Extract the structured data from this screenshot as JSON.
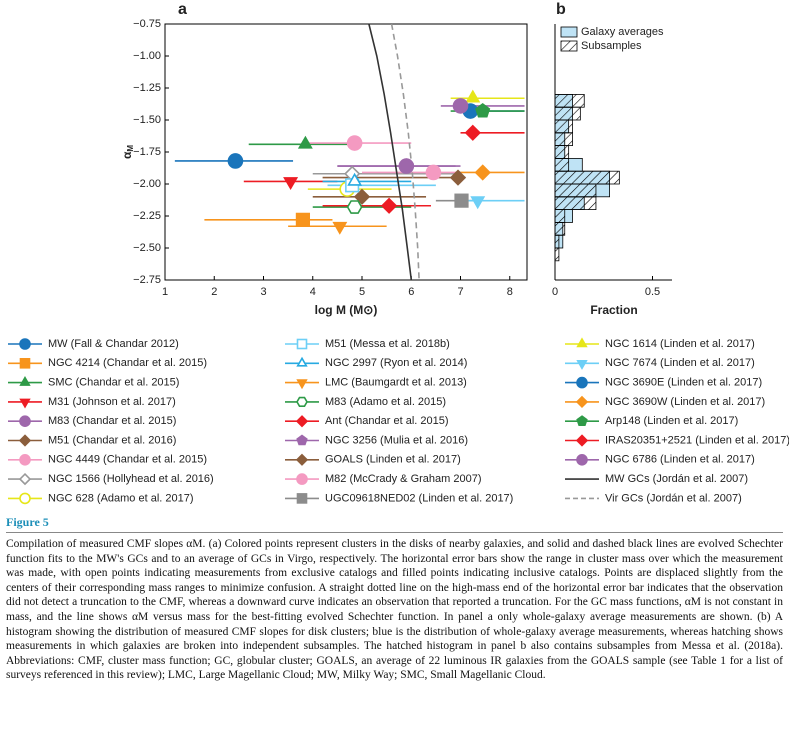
{
  "chart_data": [
    {
      "type": "scatter",
      "title": "a",
      "xlabel": "log M (M⊙)",
      "ylabel_symbol": "α",
      "ylabel_subscript": "M",
      "xlim": [
        1,
        8.35
      ],
      "ylim": [
        -2.75,
        -0.75
      ],
      "xticks": [
        1,
        2,
        3,
        4,
        5,
        6,
        7,
        8
      ],
      "yticks": [
        {
          "value": -0.75,
          "label": "−0.75"
        },
        {
          "value": -1.0,
          "label": "−1.00"
        },
        {
          "value": -1.25,
          "label": "−1.25"
        },
        {
          "value": -1.5,
          "label": "−1.50"
        },
        {
          "value": -1.75,
          "label": "−1.75"
        },
        {
          "value": -2.0,
          "label": "−2.00"
        },
        {
          "value": -2.25,
          "label": "−2.25"
        },
        {
          "value": -2.5,
          "label": "−2.50"
        },
        {
          "value": -2.75,
          "label": "−2.75"
        }
      ],
      "series": [
        {
          "name": "MW (Fall & Chandar 2012)",
          "color": "#1a75bb",
          "marker": "circle",
          "filled": true,
          "x": [
            2.43
          ],
          "values": [
            -1.82
          ],
          "xerr": [
            [
              1.2,
              3.6
            ]
          ]
        },
        {
          "name": "NGC 4214 (Chandar et al. 2015)",
          "color": "#f7941d",
          "marker": "square",
          "filled": true,
          "x": [
            3.8
          ],
          "values": [
            -2.28
          ],
          "xerr": [
            [
              1.8,
              4.4
            ]
          ]
        },
        {
          "name": "SMC (Chandar et al. 2015)",
          "color": "#2e9a47",
          "marker": "triangle-up",
          "filled": true,
          "x": [
            3.85
          ],
          "values": [
            -1.69
          ],
          "xerr": [
            [
              2.7,
              5.0
            ]
          ]
        },
        {
          "name": "M31 (Johnson et al. 2017)",
          "color": "#ed1c24",
          "marker": "triangle-down",
          "filled": true,
          "x": [
            3.55
          ],
          "values": [
            -1.98
          ],
          "xerr": [
            [
              2.6,
              4.5
            ]
          ]
        },
        {
          "name": "M83 (Chandar et al. 2015)",
          "color": "#9e67ab",
          "marker": "circle",
          "filled": true,
          "x": [
            5.9
          ],
          "values": [
            -1.86
          ],
          "xerr": [
            [
              4.5,
              6.9
            ]
          ]
        },
        {
          "name": "M51 (Chandar et al. 2016)",
          "color": "#8b5e3c",
          "marker": "diamond",
          "filled": true,
          "x": [
            5.0
          ],
          "values": [
            -2.1
          ],
          "xerr": [
            [
              4.0,
              6.3
            ]
          ]
        },
        {
          "name": "NGC 4449 (Chandar et al. 2015)",
          "color": "#f49ac1",
          "marker": "circle",
          "filled": true,
          "x": [
            4.85
          ],
          "values": [
            -1.68
          ],
          "xerr": [
            [
              3.8,
              6.0
            ]
          ]
        },
        {
          "name": "NGC 1566 (Hollyhead et al. 2016)",
          "color": "#999999",
          "marker": "diamond",
          "filled": false,
          "x": [
            4.8
          ],
          "values": [
            -1.92
          ],
          "xerr": [
            [
              4.0,
              7.0
            ]
          ]
        },
        {
          "name": "NGC 628 (Adamo et al. 2017)",
          "color": "#e6e619",
          "marker": "circle",
          "filled": false,
          "x": [
            4.7
          ],
          "values": [
            -2.04
          ],
          "xerr": [
            [
              3.9,
              5.6
            ]
          ]
        },
        {
          "name": "M51 (Messa et al. 2018b)",
          "color": "#6dcff6",
          "marker": "square",
          "filled": false,
          "x": [
            4.8
          ],
          "values": [
            -2.01
          ],
          "xerr": [
            [
              4.3,
              6.5
            ]
          ]
        },
        {
          "name": "NGC 2997 (Ryon et al. 2014)",
          "color": "#27aae1",
          "marker": "triangle-up",
          "filled": false,
          "x": [
            4.85
          ],
          "values": [
            -1.98
          ],
          "xerr": [
            [
              4.2,
              6.0
            ]
          ]
        },
        {
          "name": "LMC (Baumgardt et al. 2013)",
          "color": "#f7941d",
          "marker": "triangle-down",
          "filled": true,
          "x": [
            4.55
          ],
          "values": [
            -2.33
          ],
          "xerr": [
            [
              3.5,
              5.5
            ]
          ]
        },
        {
          "name": "M83 (Adamo et al. 2015)",
          "color": "#2e9a47",
          "marker": "hexagon",
          "filled": false,
          "x": [
            4.85
          ],
          "values": [
            -2.18
          ],
          "xerr": [
            [
              4.0,
              6.0
            ]
          ]
        },
        {
          "name": "Ant (Chandar et al. 2015)",
          "color": "#ed1c24",
          "marker": "diamond",
          "filled": true,
          "x": [
            5.55
          ],
          "values": [
            -2.17
          ],
          "xerr": [
            [
              4.2,
              6.4
            ]
          ]
        },
        {
          "name": "NGC 3256 (Mulia et al. 2016)",
          "color": "#9e67ab",
          "marker": "pentagon",
          "filled": true,
          "x": [
            5.9
          ],
          "values": [
            -1.86
          ],
          "xerr": [
            [
              4.5,
              7.0
            ]
          ]
        },
        {
          "name": "GOALS (Linden et al. 2017)",
          "color": "#8b5e3c",
          "marker": "diamond",
          "filled": true,
          "x": [
            6.95
          ],
          "values": [
            -1.95
          ],
          "xerr": [
            [
              4.2,
              7.1
            ]
          ]
        },
        {
          "name": "M82 (McCrady & Graham 2007)",
          "color": "#f49ac1",
          "marker": "circle",
          "filled": true,
          "x": [
            6.45
          ],
          "values": [
            -1.91
          ],
          "xerr": [
            [
              5.0,
              7.0
            ]
          ]
        },
        {
          "name": "UGC09618NED02 (Linden et al. 2017)",
          "color": "#8c8c8c",
          "marker": "square",
          "filled": true,
          "x": [
            7.02
          ],
          "values": [
            -2.13
          ],
          "xerr": [
            [
              6.5,
              7.4
            ]
          ]
        },
        {
          "name": "NGC 1614 (Linden et al. 2017)",
          "color": "#e6e619",
          "marker": "triangle-up",
          "filled": true,
          "x": [
            7.25
          ],
          "values": [
            -1.33
          ],
          "xerr": [
            [
              6.8,
              8.3
            ]
          ]
        },
        {
          "name": "NGC 7674 (Linden et al. 2017)",
          "color": "#6dcff6",
          "marker": "triangle-down",
          "filled": true,
          "x": [
            7.35
          ],
          "values": [
            -2.13
          ],
          "xerr": [
            [
              7.0,
              8.3
            ]
          ]
        },
        {
          "name": "NGC 3690E (Linden et al. 2017)",
          "color": "#1a75bb",
          "marker": "circle",
          "filled": true,
          "x": [
            7.2
          ],
          "values": [
            -1.43
          ],
          "xerr": [
            [
              6.9,
              8.3
            ]
          ]
        },
        {
          "name": "NGC 3690W (Linden et al. 2017)",
          "color": "#f7941d",
          "marker": "diamond",
          "filled": true,
          "x": [
            7.45
          ],
          "values": [
            -1.91
          ],
          "xerr": [
            [
              6.9,
              8.3
            ]
          ]
        },
        {
          "name": "Arp148 (Linden et al. 2017)",
          "color": "#2e9a47",
          "marker": "pentagon",
          "filled": true,
          "x": [
            7.45
          ],
          "values": [
            -1.43
          ],
          "xerr": [
            [
              6.8,
              8.3
            ]
          ]
        },
        {
          "name": "IRAS20351+2521 (Linden et al. 2017)",
          "color": "#ed1c24",
          "marker": "diamond",
          "filled": true,
          "x": [
            7.25
          ],
          "values": [
            -1.6
          ],
          "xerr": [
            [
              7.0,
              8.3
            ]
          ]
        },
        {
          "name": "NGC 6786 (Linden et al. 2017)",
          "color": "#9e67ab",
          "marker": "circle",
          "filled": true,
          "x": [
            7.0
          ],
          "values": [
            -1.39
          ],
          "xerr": [
            [
              6.6,
              8.3
            ]
          ]
        },
        {
          "name": "MW GCs (Jordán et al. 2007)",
          "type": "line",
          "color": "#333333",
          "style": "solid",
          "x": [
            5.14,
            5.3,
            5.45,
            5.58,
            5.7,
            5.82,
            5.92,
            6.0
          ],
          "values": [
            -0.75,
            -1.0,
            -1.3,
            -1.6,
            -1.9,
            -2.2,
            -2.5,
            -2.75
          ]
        },
        {
          "name": "Vir GCs (Jordán et al. 2007)",
          "type": "line",
          "color": "#999999",
          "style": "dashed",
          "x": [
            5.6,
            5.72,
            5.84,
            5.94,
            6.02,
            6.08,
            6.13,
            6.16
          ],
          "values": [
            -0.75,
            -1.0,
            -1.3,
            -1.6,
            -1.9,
            -2.2,
            -2.5,
            -2.75
          ]
        }
      ]
    },
    {
      "type": "histogram",
      "title": "b",
      "xlabel": "Fraction",
      "orientation": "horizontal",
      "xlim": [
        0,
        0.6
      ],
      "xticks": [
        0,
        0.5
      ],
      "ylim": [
        -2.75,
        -0.75
      ],
      "legend": "upper left",
      "bins": [
        -2.6,
        -2.5,
        -2.4,
        -2.3,
        -2.2,
        -2.1,
        -2.0,
        -1.9,
        -1.8,
        -1.7,
        -1.6,
        -1.5,
        -1.4,
        -1.3
      ],
      "series": [
        {
          "name": "Galaxy averages",
          "color": "#bfe3f5",
          "hatch": false,
          "values": [
            0.0,
            0.04,
            0.04,
            0.09,
            0.15,
            0.28,
            0.28,
            0.14,
            0.05,
            0.05,
            0.07,
            0.09,
            0.09
          ]
        },
        {
          "name": "Subsamples",
          "color": "none",
          "hatch": true,
          "values": [
            0.02,
            0.02,
            0.05,
            0.05,
            0.21,
            0.21,
            0.33,
            0.07,
            0.07,
            0.09,
            0.09,
            0.13,
            0.15
          ]
        }
      ]
    }
  ],
  "figure_label": "Figure 5",
  "caption": "Compilation of measured CMF slopes αM. (a) Colored points represent clusters in the disks of nearby galaxies, and solid and dashed black lines are evolved Schechter function fits to the MW's GCs and to an average of GCs in Virgo, respectively. The horizontal error bars show the range in cluster mass over which the measurement was made, with open points indicating measurements from exclusive catalogs and filled points indicating inclusive catalogs. Points are displaced slightly from the centers of their corresponding mass ranges to minimize confusion. A straight dotted line on the high-mass end of the horizontal error bar indicates that the observation did not detect a truncation to the CMF, whereas a downward curve indicates an observation that reported a truncation. For the GC mass functions, αM is not constant in mass, and the line shows αM versus mass for the best-fitting evolved Schechter function. In panel a only whole-galaxy average measurements are shown. (b) A histogram showing the distribution of measured CMF slopes for disk clusters; blue is the distribution of whole-galaxy average measurements, whereas hatching shows measurements in which galaxies are broken into independent subsamples. The hatched histogram in panel b also contains subsamples from Messa et al. (2018a). Abbreviations: CMF, cluster mass function; GC, globular cluster; GOALS, an average of 22 luminous IR galaxies from the GOALS sample (see Table 1 for a list of surveys referenced in this review); LMC, Large Magellanic Cloud; MW, Milky Way; SMC, Small Magellanic Cloud."
}
